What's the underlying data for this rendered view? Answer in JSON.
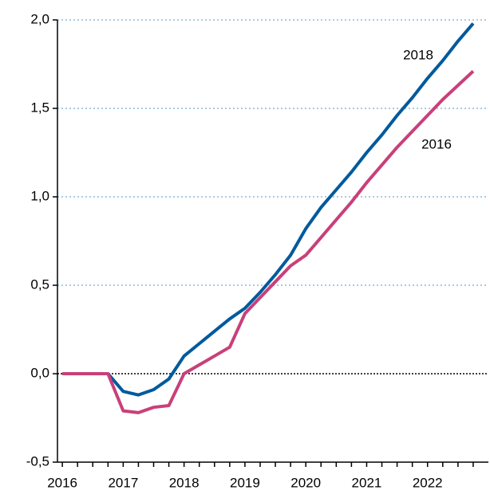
{
  "chart_data": {
    "type": "line",
    "x": [
      2016,
      2016.25,
      2016.5,
      2016.75,
      2017,
      2017.25,
      2017.5,
      2017.75,
      2018,
      2018.25,
      2018.5,
      2018.75,
      2019,
      2019.25,
      2019.5,
      2019.75,
      2020,
      2020.25,
      2020.5,
      2020.75,
      2021,
      2021.25,
      2021.5,
      2021.75,
      2022,
      2022.25,
      2022.5,
      2022.75
    ],
    "series": [
      {
        "name": "2018",
        "color": "#005a9c",
        "values": [
          0,
          0,
          0,
          0,
          -0.1,
          -0.12,
          -0.09,
          -0.03,
          0.1,
          0.17,
          0.24,
          0.31,
          0.37,
          0.46,
          0.56,
          0.67,
          0.82,
          0.94,
          1.04,
          1.14,
          1.25,
          1.35,
          1.46,
          1.56,
          1.67,
          1.77,
          1.88,
          1.98
        ]
      },
      {
        "name": "2016",
        "color": "#c8407a",
        "values": [
          0,
          0,
          0,
          0,
          -0.21,
          -0.22,
          -0.19,
          -0.18,
          0.0,
          0.05,
          0.1,
          0.15,
          0.34,
          0.43,
          0.52,
          0.61,
          0.67,
          0.77,
          0.87,
          0.97,
          1.08,
          1.18,
          1.28,
          1.37,
          1.46,
          1.55,
          1.63,
          1.71
        ]
      }
    ],
    "xlim": [
      2015.92,
      2023.0
    ],
    "xticks": [
      2016,
      2017,
      2018,
      2019,
      2020,
      2021,
      2022
    ],
    "ylim": [
      -0.5,
      2.0
    ],
    "yticks": [
      {
        "value": -0.5,
        "label": "-0,5"
      },
      {
        "value": 0,
        "label": "0,0"
      },
      {
        "value": 0.5,
        "label": "0,5"
      },
      {
        "value": 1.0,
        "label": "1,0"
      },
      {
        "value": 1.5,
        "label": "1,5"
      },
      {
        "value": 2.0,
        "label": "2,0"
      }
    ],
    "grid": true
  }
}
